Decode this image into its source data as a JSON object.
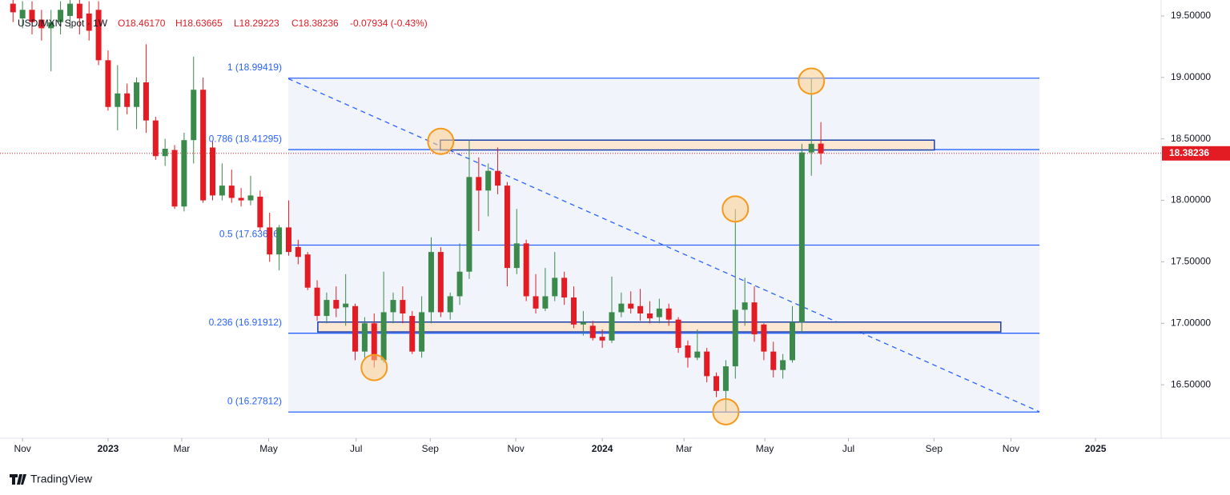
{
  "chart_data": {
    "type": "candlestick",
    "legend": {
      "symbol": "USD/MXN Spot · 1W",
      "open": "O18.46170",
      "high": "H18.63665",
      "low": "L18.29223",
      "close": "C18.38236",
      "change": "-0.07934 (-0.43%)"
    },
    "up_color": "#3b8a4c",
    "down_color": "#e31c23",
    "x": [
      -10,
      -9,
      -8,
      -7,
      -6,
      -5,
      -4,
      -3,
      -2,
      -1,
      0,
      1,
      2,
      3,
      4,
      5,
      6,
      7,
      8,
      9,
      10,
      11,
      12,
      13,
      14,
      15,
      16,
      17,
      18,
      19,
      20,
      21,
      22,
      23,
      24,
      25,
      26,
      27,
      28,
      29,
      30,
      31,
      32,
      33,
      34,
      35,
      36,
      37,
      38,
      39,
      40,
      41,
      42,
      43,
      44,
      45,
      46,
      47,
      48,
      49,
      50,
      51,
      52,
      53,
      54,
      55,
      56,
      57,
      58,
      59,
      60,
      61,
      62,
      63,
      64,
      65,
      66,
      67,
      68,
      69,
      70,
      71,
      72,
      73,
      74,
      75
    ],
    "open": [
      19.6,
      19.48,
      19.55,
      19.47,
      19.4,
      19.45,
      19.5,
      19.6,
      19.52,
      19.55,
      19.14,
      18.76,
      18.87,
      18.76,
      18.96,
      18.65,
      18.36,
      18.41,
      17.95,
      18.49,
      18.9,
      18.43,
      18.04,
      18.12,
      18.02,
      18.0,
      18.03,
      17.78,
      17.56,
      17.78,
      17.62,
      17.56,
      17.29,
      17.06,
      17.19,
      17.13,
      17.14,
      16.77,
      17.0,
      16.7,
      17.09,
      17.19,
      17.06,
      16.77,
      17.09,
      17.58,
      17.09,
      17.22,
      17.42,
      18.19,
      18.08,
      18.24,
      18.12,
      17.45,
      17.65,
      17.22,
      17.12,
      17.22,
      17.37,
      17.21,
      16.99,
      16.98,
      16.89,
      16.86,
      17.09,
      17.16,
      17.14,
      17.08,
      17.05,
      17.12,
      17.03,
      16.82,
      16.72,
      16.77,
      16.57,
      16.45,
      16.65,
      17.11,
      17.17,
      16.99,
      16.77,
      16.62,
      16.7,
      17.01,
      18.39,
      18.4617
    ],
    "high": [
      19.66,
      19.62,
      19.62,
      19.55,
      19.55,
      19.62,
      19.7,
      19.66,
      19.62,
      19.62,
      19.22,
      19.1,
      18.95,
      19.0,
      19.27,
      18.68,
      18.5,
      18.45,
      18.55,
      19.17,
      19.0,
      18.48,
      18.3,
      18.25,
      18.1,
      18.2,
      18.08,
      17.9,
      17.8,
      18.0,
      17.68,
      17.58,
      17.35,
      17.25,
      17.3,
      17.4,
      17.16,
      17.05,
      17.08,
      17.42,
      17.25,
      17.3,
      17.1,
      17.22,
      17.7,
      17.62,
      17.25,
      17.65,
      18.49,
      18.35,
      18.3,
      18.43,
      18.15,
      17.93,
      17.68,
      17.4,
      17.45,
      17.58,
      17.42,
      17.3,
      17.1,
      17.02,
      16.95,
      17.38,
      17.25,
      17.26,
      17.28,
      17.18,
      17.2,
      17.16,
      17.05,
      16.86,
      16.95,
      16.8,
      16.6,
      16.7,
      17.93,
      17.37,
      17.3,
      17.0,
      16.85,
      16.75,
      17.14,
      18.46,
      18.99,
      18.63665
    ],
    "low": [
      19.45,
      19.4,
      19.35,
      19.3,
      19.05,
      19.35,
      19.4,
      19.35,
      19.3,
      19.1,
      18.73,
      18.57,
      18.7,
      18.58,
      18.55,
      18.33,
      18.28,
      17.93,
      17.91,
      18.3,
      17.98,
      18.0,
      18.0,
      17.98,
      17.95,
      17.96,
      17.75,
      17.5,
      17.43,
      17.55,
      17.48,
      17.27,
      17.02,
      17.0,
      17.05,
      16.98,
      16.7,
      16.72,
      16.64,
      16.68,
      17.0,
      17.0,
      16.75,
      16.72,
      17.0,
      17.05,
      17.03,
      17.15,
      17.36,
      17.75,
      17.87,
      18.05,
      17.3,
      17.4,
      17.18,
      17.08,
      17.1,
      17.18,
      17.15,
      16.96,
      16.9,
      16.86,
      16.8,
      16.84,
      17.05,
      17.08,
      17.02,
      17.0,
      17.0,
      16.98,
      16.76,
      16.64,
      16.7,
      16.52,
      16.4,
      16.28,
      16.55,
      16.98,
      16.85,
      16.7,
      16.56,
      16.55,
      16.68,
      16.92,
      18.2,
      18.29223
    ],
    "close": [
      19.53,
      19.55,
      19.45,
      19.4,
      19.45,
      19.55,
      19.6,
      19.48,
      19.38,
      19.14,
      18.76,
      18.87,
      18.76,
      18.96,
      18.65,
      18.36,
      18.42,
      17.95,
      18.49,
      18.9,
      18.0,
      18.04,
      18.12,
      18.02,
      18.0,
      18.04,
      17.78,
      17.56,
      17.78,
      17.58,
      17.54,
      17.29,
      17.06,
      17.19,
      17.12,
      17.16,
      16.77,
      17.0,
      16.7,
      17.09,
      17.19,
      17.08,
      16.77,
      17.09,
      17.58,
      17.09,
      17.22,
      17.42,
      18.19,
      18.08,
      18.24,
      18.12,
      17.45,
      17.65,
      17.22,
      17.12,
      17.22,
      17.37,
      17.21,
      16.99,
      17.01,
      16.88,
      16.86,
      17.09,
      17.16,
      17.12,
      17.08,
      17.04,
      17.12,
      17.03,
      16.8,
      16.72,
      16.77,
      16.57,
      16.45,
      16.65,
      17.11,
      17.17,
      16.91,
      16.77,
      16.62,
      16.7,
      17.01,
      18.39,
      18.46,
      18.38236
    ],
    "xlim": [
      -11.37,
      110.8
    ],
    "xticks": [
      {
        "value": -9.0,
        "label": "Nov"
      },
      {
        "value": 0,
        "label": "2023"
      },
      {
        "value": 7.75,
        "label": "Mar"
      },
      {
        "value": 16.9,
        "label": "May"
      },
      {
        "value": 26.1,
        "label": "Jul"
      },
      {
        "value": 33.9,
        "label": "Sep"
      },
      {
        "value": 42.9,
        "label": "Nov"
      },
      {
        "value": 52,
        "label": "2024"
      },
      {
        "value": 60.6,
        "label": "Mar"
      },
      {
        "value": 69.1,
        "label": "May"
      },
      {
        "value": 77.9,
        "label": "Jul"
      },
      {
        "value": 86.9,
        "label": "Sep"
      },
      {
        "value": 95,
        "label": "Nov"
      },
      {
        "value": 103.9,
        "label": "2025"
      }
    ],
    "ylim": [
      16.065,
      19.63
    ],
    "yticks": [
      {
        "value": 16.5,
        "label": "16.50000"
      },
      {
        "value": 17,
        "label": "17.00000"
      },
      {
        "value": 17.5,
        "label": "17.50000"
      },
      {
        "value": 18,
        "label": "18.00000"
      },
      {
        "value": 18.5,
        "label": "18.50000"
      },
      {
        "value": 19,
        "label": "19.00000"
      },
      {
        "value": 19.5,
        "label": "19.50000"
      }
    ],
    "fib": {
      "x": [
        18.96,
        98.0
      ],
      "color": "#2962ff",
      "levels": [
        {
          "label": "1 (18.99419)",
          "value": 18.99419
        },
        {
          "label": "0.786 (18.41295)",
          "value": 18.41295
        },
        {
          "label": "0.5 (17.63616)",
          "value": 17.63616
        },
        {
          "label": "0.236 (16.91912)",
          "value": 16.91912
        },
        {
          "label": "0 (16.27812)",
          "value": 16.27812
        }
      ]
    },
    "trendline": {
      "x": [
        18.96,
        98.0
      ],
      "y": [
        18.99,
        16.28
      ]
    },
    "zones": [
      {
        "x": [
          34.96,
          86.94
        ],
        "y": [
          18.41,
          18.49
        ]
      },
      {
        "x": [
          22.07,
          93.93
        ],
        "y": [
          16.93,
          17.01
        ]
      }
    ],
    "highlights": [
      {
        "x": 35,
        "y": 18.48
      },
      {
        "x": 74,
        "y": 18.97
      },
      {
        "x": 66,
        "y": 17.93
      },
      {
        "x": 28,
        "y": 16.64
      },
      {
        "x": 65,
        "y": 16.28
      }
    ],
    "last_price": {
      "value": 18.38236,
      "label": "18.38236"
    },
    "brand": "TradingView"
  }
}
